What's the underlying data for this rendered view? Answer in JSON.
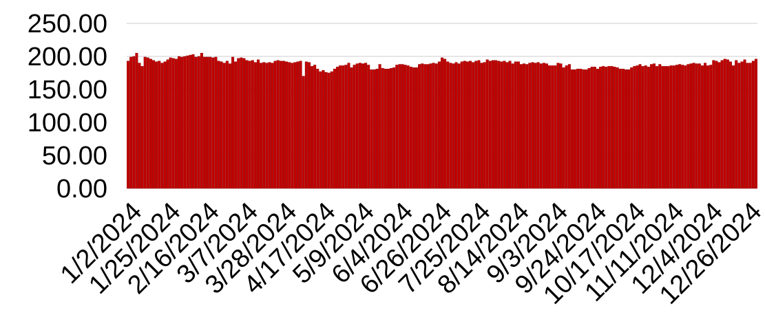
{
  "chart_data": {
    "type": "bar",
    "title": "",
    "xlabel": "",
    "ylabel": "",
    "ylim": [
      0,
      250
    ],
    "y_ticks": [
      "0.00",
      "50.00",
      "100.00",
      "150.00",
      "200.00",
      "250.00"
    ],
    "x_tick_labels": [
      "1/2/2024",
      "1/25/2024",
      "2/16/2024",
      "3/7/2024",
      "3/28/2024",
      "4/17/2024",
      "5/9/2024",
      "6/4/2024",
      "6/26/2024",
      "7/25/2024",
      "8/14/2024",
      "9/3/2024",
      "9/24/2024",
      "10/17/2024",
      "11/11/2024",
      "12/4/2024",
      "12/26/2024"
    ],
    "grid": true,
    "bar_color": "#C00000",
    "bar_edge_color": "#8B0000",
    "series": [
      {
        "values": [
          193,
          199,
          200,
          205,
          190,
          185,
          199,
          198,
          196,
          194,
          192,
          193,
          190,
          192,
          195,
          198,
          197,
          196,
          200,
          199,
          200,
          201,
          202,
          203,
          199,
          200,
          205,
          199,
          199,
          199,
          198,
          199,
          193,
          192,
          190,
          193,
          189,
          199,
          192,
          197,
          198,
          197,
          194,
          193,
          194,
          191,
          195,
          190,
          191,
          190,
          191,
          190,
          193,
          194,
          193,
          193,
          192,
          191,
          190,
          191,
          192,
          193,
          170,
          192,
          191,
          185,
          187,
          181,
          177,
          179,
          176,
          175,
          177,
          181,
          184,
          186,
          186,
          187,
          190,
          183,
          187,
          189,
          190,
          189,
          190,
          187,
          180,
          180,
          181,
          188,
          182,
          181,
          181,
          182,
          183,
          187,
          188,
          188,
          187,
          186,
          184,
          183,
          183,
          188,
          189,
          188,
          188,
          189,
          190,
          189,
          192,
          198,
          196,
          192,
          190,
          189,
          191,
          189,
          192,
          193,
          192,
          193,
          191,
          193,
          194,
          190,
          191,
          195,
          193,
          194,
          194,
          193,
          192,
          193,
          191,
          193,
          189,
          192,
          192,
          188,
          189,
          188,
          190,
          191,
          190,
          191,
          189,
          190,
          189,
          186,
          186,
          186,
          190,
          189,
          183,
          186,
          188,
          180,
          180,
          181,
          181,
          180,
          180,
          182,
          184,
          184,
          181,
          184,
          185,
          184,
          185,
          185,
          184,
          183,
          181,
          181,
          180,
          180,
          183,
          185,
          186,
          188,
          185,
          186,
          184,
          188,
          189,
          185,
          188,
          185,
          185,
          185,
          186,
          186,
          187,
          188,
          187,
          186,
          188,
          189,
          190,
          189,
          189,
          186,
          190,
          186,
          187,
          194,
          193,
          191,
          194,
          196,
          195,
          192,
          186,
          194,
          190,
          192,
          195,
          190,
          190,
          193,
          196
        ]
      }
    ]
  }
}
